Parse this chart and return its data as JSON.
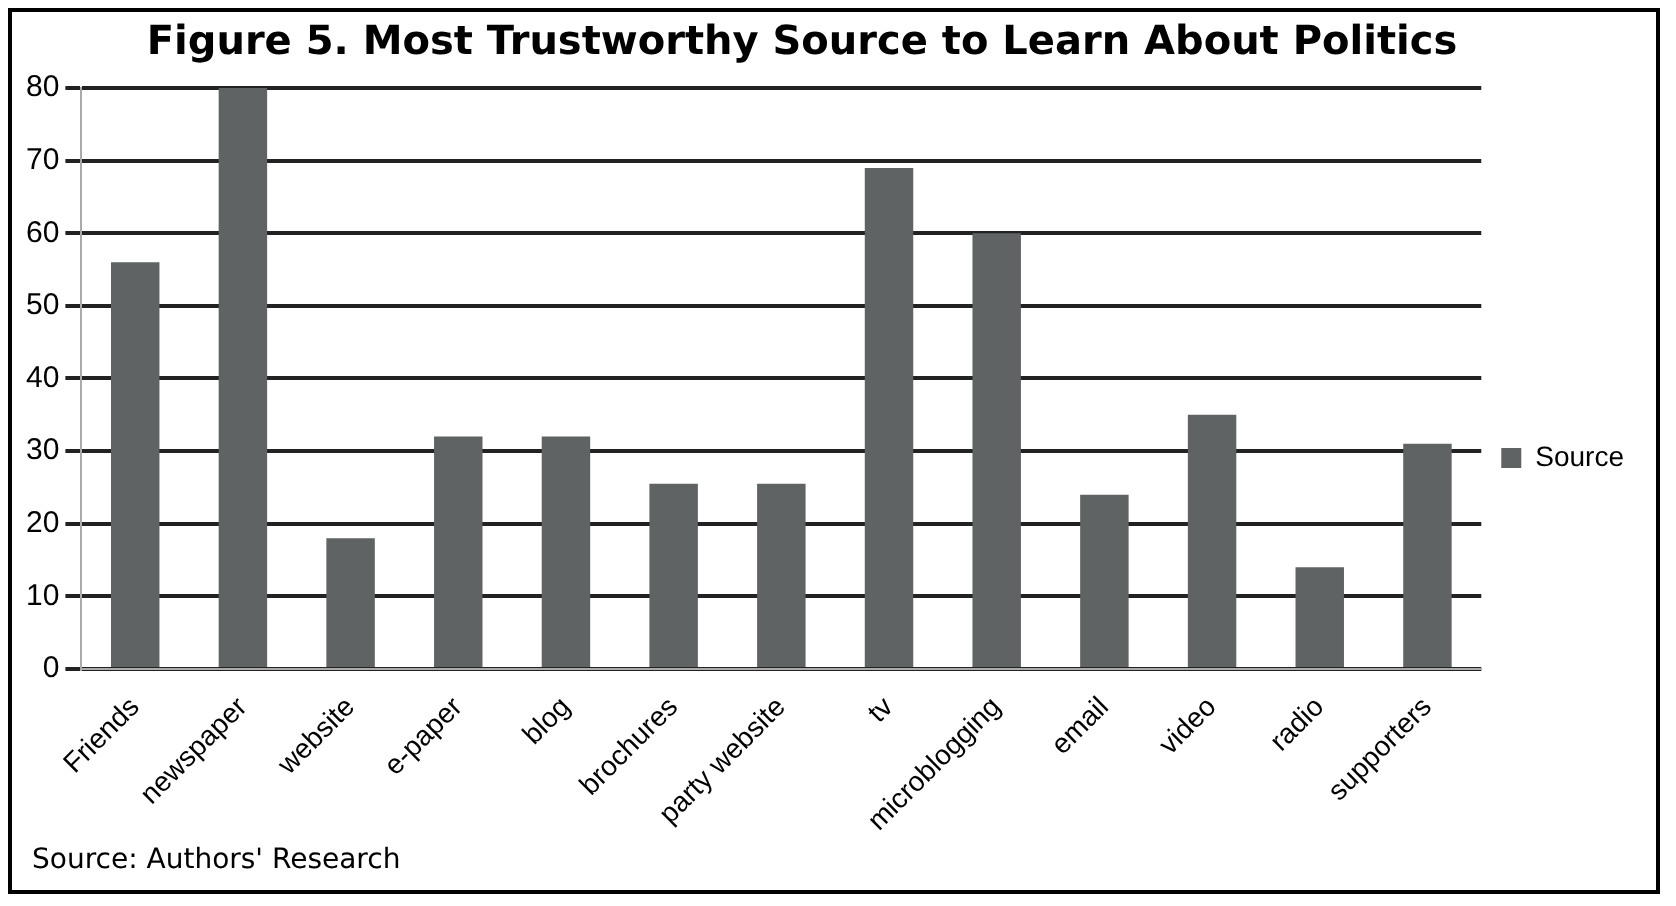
{
  "chart_data": {
    "type": "bar",
    "title": "Figure 5. Most Trustworthy Source to Learn About Politics",
    "categories": [
      "Friends",
      "newspaper",
      "website",
      "e-paper",
      "blog",
      "brochures",
      "party website",
      "tv",
      "microblogging",
      "email",
      "video",
      "radio",
      "supporters"
    ],
    "series": [
      {
        "name": "Source",
        "color": "#5f6363",
        "values": [
          56,
          80,
          18,
          32,
          32,
          25.5,
          25.5,
          69,
          60,
          24,
          35,
          14,
          31
        ]
      }
    ],
    "ylim": [
      0,
      80
    ],
    "yticks": [
      0,
      10,
      20,
      30,
      40,
      50,
      60,
      70,
      80
    ],
    "grid": "y",
    "legend": "right",
    "annotations": [
      "Source: Authors' Research"
    ]
  }
}
